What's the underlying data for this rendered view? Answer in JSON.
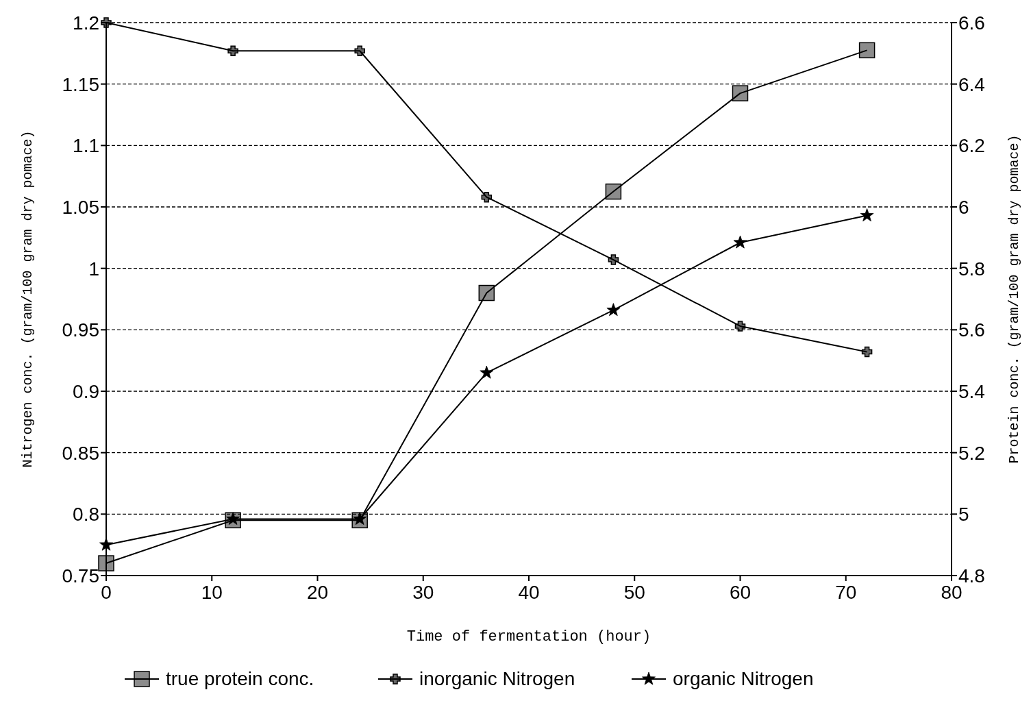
{
  "chart_data": {
    "type": "line",
    "xlabel": "Time of fermentation (hour)",
    "ylabel": "Nitrogen conc. (gram/100 gram dry pomace)",
    "y2label": "Protein conc. (gram/100 gram dry pomace)",
    "x": [
      0,
      12,
      24,
      36,
      48,
      60,
      72
    ],
    "xlim": [
      0,
      80
    ],
    "xticks": [
      0,
      10,
      20,
      30,
      40,
      50,
      60,
      70,
      80
    ],
    "ylim": [
      0.75,
      1.2
    ],
    "yticks": [
      0.75,
      0.8,
      0.85,
      0.9,
      0.95,
      1,
      1.05,
      1.1,
      1.15,
      1.2
    ],
    "y2lim": [
      4.8,
      6.6
    ],
    "y2ticks": [
      4.8,
      5,
      5.2,
      5.4,
      5.6,
      5.8,
      6,
      6.2,
      6.4,
      6.6
    ],
    "grid": "y",
    "legend": "bottom",
    "line_style": "solid",
    "series": [
      {
        "name": "true protein conc.",
        "color": "#000000",
        "axis": "y2",
        "marker": "square",
        "values": [
          4.84,
          4.98,
          4.98,
          5.72,
          6.05,
          6.37,
          6.51
        ]
      },
      {
        "name": "inorganic Nitrogen",
        "color": "#000000",
        "marker": "cross",
        "values": [
          1.2,
          1.177,
          1.177,
          1.058,
          1.007,
          0.953,
          0.932
        ]
      },
      {
        "name": "organic Nitrogen",
        "color": "#000000",
        "marker": "star",
        "values": [
          0.775,
          0.796,
          0.796,
          0.915,
          0.966,
          1.021,
          1.043
        ]
      }
    ]
  }
}
